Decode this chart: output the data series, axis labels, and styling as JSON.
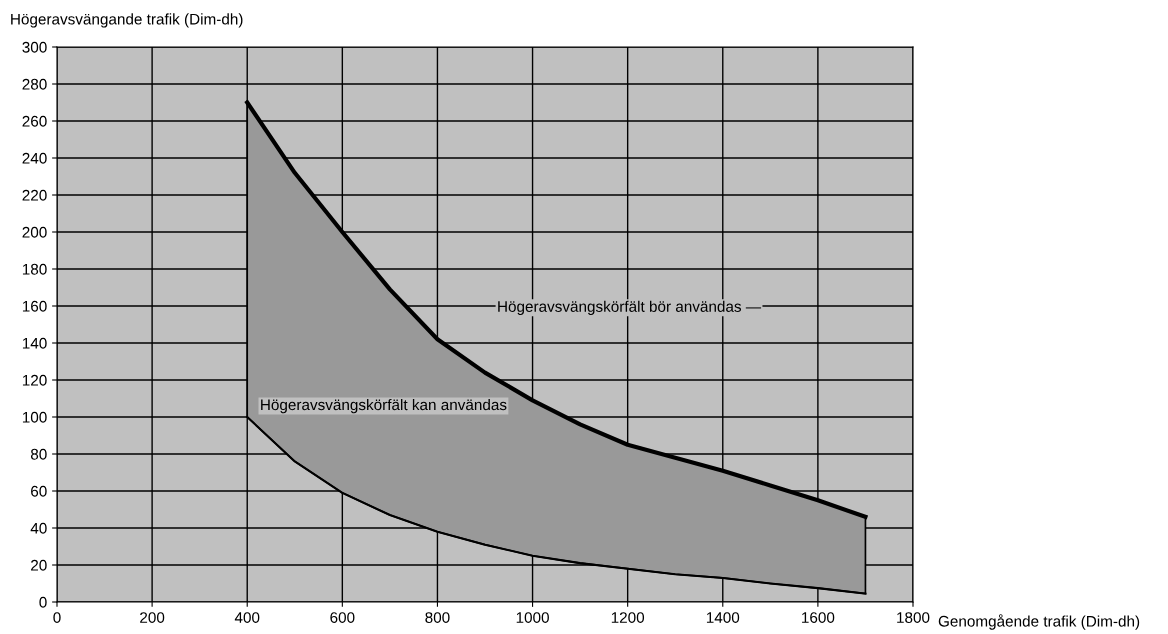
{
  "chart_data": {
    "type": "area",
    "xlabel": "Genomgående trafik (Dim-dh)",
    "ylabel": "Högeravsvängande trafik (Dim-dh)",
    "x": [
      400,
      500,
      600,
      700,
      800,
      900,
      1000,
      1100,
      1200,
      1300,
      1400,
      1500,
      1600,
      1700
    ],
    "series": [
      {
        "color": "#999999",
        "values": [
          270,
          232,
          200,
          169,
          142,
          124,
          109,
          96,
          85,
          78,
          71,
          63,
          55,
          46
        ]
      },
      {
        "type": "line",
        "color": "#000000",
        "values": [
          100,
          76,
          59,
          47,
          38,
          31,
          25,
          21,
          18,
          15,
          13,
          10,
          7.5,
          4.5
        ]
      }
    ],
    "xlim": [
      0,
      1800
    ],
    "ylim": [
      0,
      300
    ],
    "xticks": [
      0,
      200,
      400,
      600,
      800,
      1000,
      1200,
      1400,
      1600,
      1800
    ],
    "yticks": [
      0,
      20,
      40,
      60,
      80,
      100,
      120,
      140,
      160,
      180,
      200,
      220,
      240,
      260,
      280,
      300
    ],
    "grid": true,
    "annotations": [
      "Högeravsvängskörfält bör användas —",
      "Högeravsvängskörfält kan användas"
    ]
  }
}
